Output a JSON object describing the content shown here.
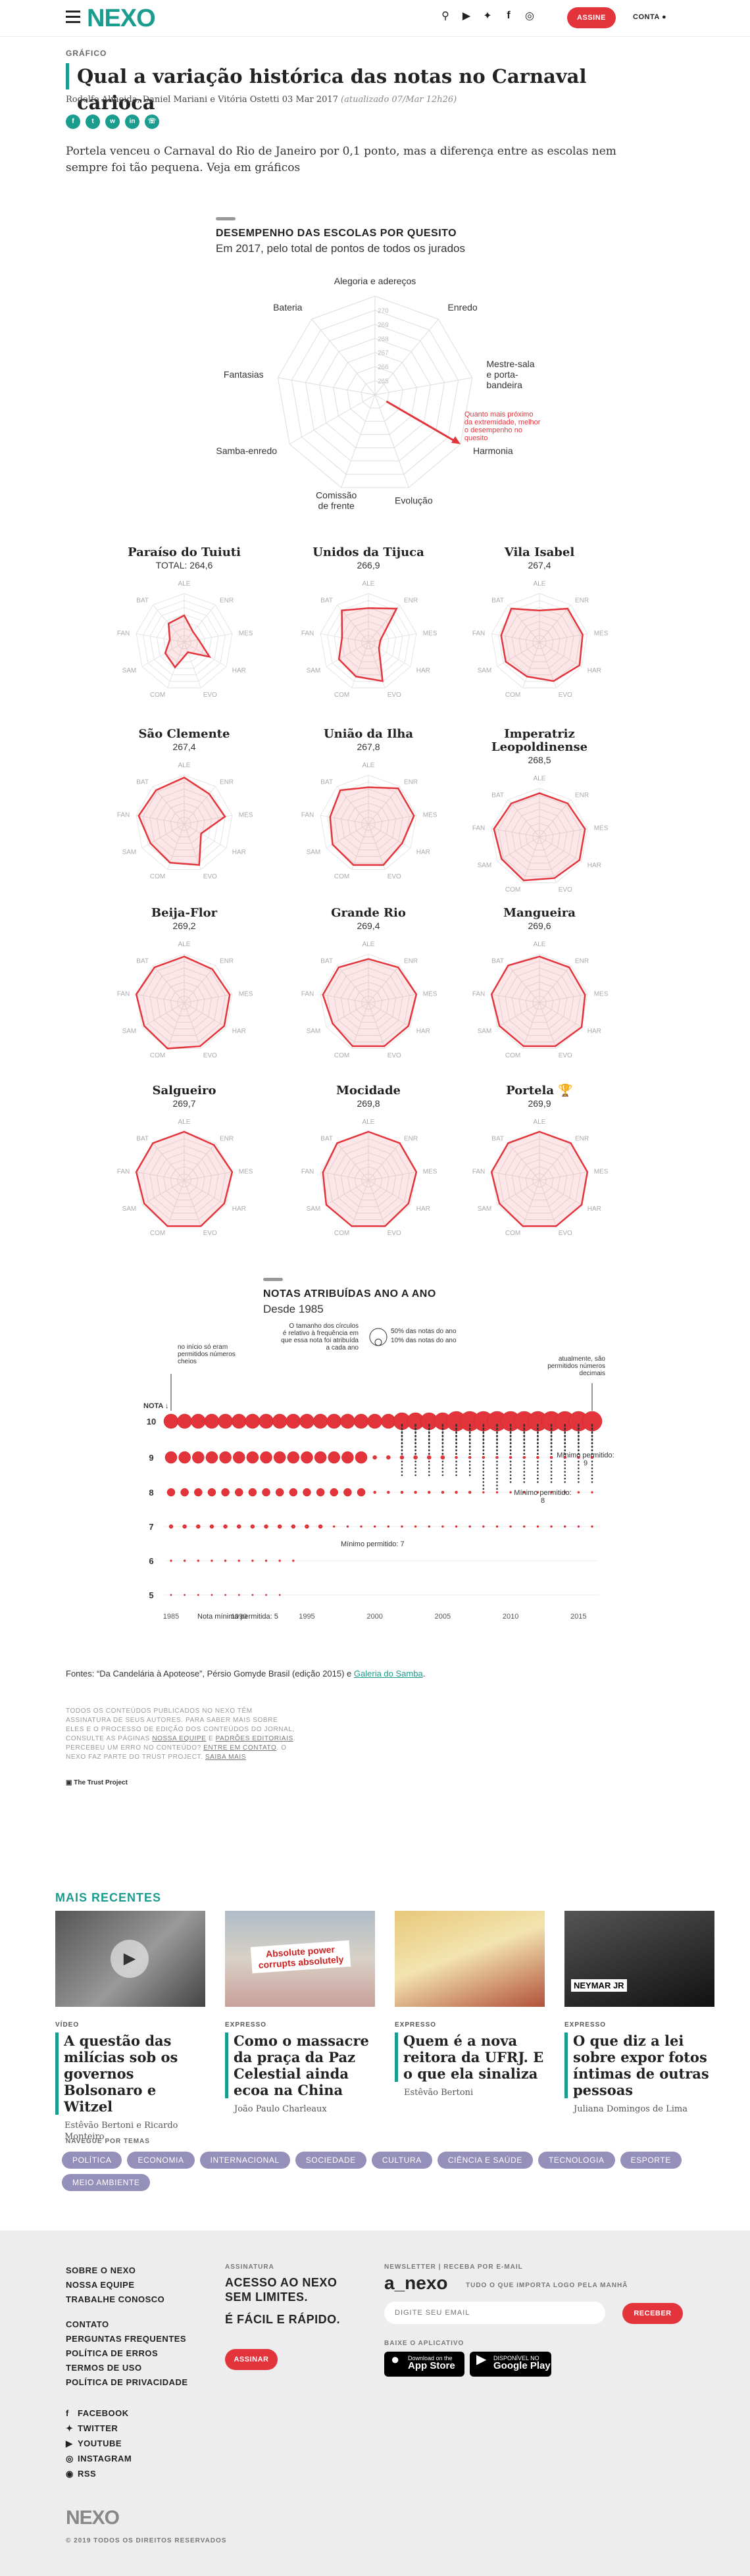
{
  "header": {
    "logo": "NEXO",
    "assine": "ASSINE",
    "conta": "CONTA"
  },
  "article": {
    "kicker": "GRÁFICO",
    "title": "Qual a variação histórica das notas no Carnaval carioca",
    "byline": "Rodolfo Almeida, Daniel Mariani e Vitória Ostetti 03 Mar 2017",
    "updated": "(atualizado 07/Mar 12h26)",
    "lead": "Portela venceu o Carnaval do Rio de Janeiro por 0,1 ponto, mas a diferença entre as escolas nem sempre foi tão pequena. Veja em gráficos"
  },
  "radar": {
    "title": "DESEMPENHO DAS ESCOLAS POR QUESITO",
    "subtitle": "Em 2017, pelo total de pontos de todos os jurados",
    "axes": [
      "Alegoria e adereços",
      "Enredo",
      "Mestre-sala e porta-bandeira",
      "Harmonia",
      "Evolução",
      "Comissão de frente",
      "Samba-enredo",
      "Fantasias",
      "Bateria"
    ],
    "rings": [
      "265",
      "266",
      "267",
      "268",
      "269",
      "270"
    ],
    "note": "Quanto mais próximo da extremidade, melhor o desempenho no quesito",
    "short": [
      "ALE",
      "ENR",
      "MES",
      "HAR",
      "EVO",
      "COM",
      "SAM",
      "FAN",
      "BAT"
    ],
    "total_label": "TOTAL:"
  },
  "schools": [
    {
      "name": "Paraíso do Tuiuti",
      "total": "264,6",
      "v": [
        0.55,
        0.28,
        0.3,
        0.6,
        0.22,
        0.55,
        0.45,
        0.3,
        0.5
      ]
    },
    {
      "name": "Unidos da Tijuca",
      "total": "266,9",
      "v": [
        0.7,
        0.9,
        0.25,
        0.25,
        0.85,
        0.75,
        0.7,
        0.55,
        0.85
      ]
    },
    {
      "name": "Vila Isabel",
      "total": "267,4",
      "v": [
        0.65,
        0.9,
        0.9,
        0.95,
        0.85,
        0.75,
        0.8,
        0.8,
        0.9
      ]
    },
    {
      "name": "São Clemente",
      "total": "267,4",
      "v": [
        0.95,
        0.8,
        0.85,
        0.4,
        0.9,
        0.85,
        0.8,
        0.95,
        0.9
      ]
    },
    {
      "name": "União da Ilha",
      "total": "267,8",
      "v": [
        0.75,
        0.95,
        0.95,
        0.8,
        0.9,
        0.9,
        0.85,
        0.8,
        0.9
      ]
    },
    {
      "name": "Imperatriz Leopoldinense",
      "total": "268,5",
      "v": [
        0.9,
        0.9,
        0.95,
        0.95,
        0.9,
        0.95,
        0.9,
        0.95,
        0.9
      ]
    },
    {
      "name": "Beija-Flor",
      "total": "269,2",
      "v": [
        0.95,
        0.9,
        0.95,
        0.95,
        0.95,
        1,
        0.95,
        1,
        0.95
      ]
    },
    {
      "name": "Grande Rio",
      "total": "269,4",
      "v": [
        0.9,
        0.95,
        1,
        0.95,
        0.95,
        0.95,
        0.85,
        0.95,
        0.95
      ]
    },
    {
      "name": "Mangueira",
      "total": "269,6",
      "v": [
        0.95,
        0.95,
        0.95,
        1,
        0.95,
        0.95,
        0.95,
        1,
        1
      ]
    },
    {
      "name": "Salgueiro",
      "total": "269,7",
      "v": [
        1,
        0.95,
        1,
        0.95,
        1,
        1,
        0.95,
        1,
        1
      ]
    },
    {
      "name": "Mocidade",
      "total": "269,8",
      "v": [
        1,
        1,
        1,
        0.95,
        1,
        1,
        1,
        0.95,
        1
      ]
    },
    {
      "name": "Portela",
      "total": "269,9",
      "v": [
        1,
        1,
        1,
        1,
        1,
        1,
        0.95,
        1,
        1
      ],
      "trophy": "🏆"
    }
  ],
  "bubble": {
    "title": "NOTAS ATRIBUÍDAS ANO A ANO",
    "subtitle": "Desde 1985",
    "nota_label": "NOTA",
    "y_ticks": [
      "10",
      "9",
      "8",
      "7",
      "6",
      "5"
    ],
    "x_ticks": [
      "1985",
      "1990",
      "1995",
      "2000",
      "2005",
      "2010",
      "2015"
    ],
    "note_start": "no início só eram permitidos números cheios",
    "note_size": "O tamanho dos círculos é relativo à frequência em que essa nota foi atribuída a cada ano",
    "legend_big": "50% das notas do ano",
    "legend_small": "10% das notas do ano",
    "note_end": "atualmente, são permitidos números decimais",
    "min_label": "Mínimo permitido:",
    "min9": "9",
    "min8": "8",
    "min7": "Mínimo permitido: 7",
    "min5": "Nota mínima permitida: 5"
  },
  "fontes": {
    "text": "Fontes: “Da Candelária à Apoteose”, Pérsio Gomyde Brasil (edição 2015) e",
    "link": "Galeria do Samba"
  },
  "trust": {
    "text1": "Todos os conteúdos publicados no Nexo têm assinatura de seus autores. Para saber mais sobre eles e o processo de edição dos conteúdos do jornal, consulte as páginas",
    "l1": "Nossa equipe",
    "and": "e",
    "l2": "Padrões editoriais",
    "text2": ". Percebeu um erro no conteúdo?",
    "l3": "Entre em contato",
    "text3": ". O Nexo faz parte do Trust Project.",
    "l4": "Saiba mais",
    "logo": "The Trust Project"
  },
  "recent": {
    "title": "MAIS RECENTES",
    "items": [
      {
        "kind": "VÍDEO",
        "title": "A questão das milícias sob os governos Bolsonaro e Witzel",
        "author": "Estêvão Bertoni e Ricardo Monteiro"
      },
      {
        "kind": "EXPRESSO",
        "title": "Como o massacre da praça da Paz Celestial ainda ecoa na China",
        "author": "João Paulo Charleaux",
        "sign": "Absolute power corrupts absolutely"
      },
      {
        "kind": "EXPRESSO",
        "title": "Quem é a nova reitora da UFRJ. E o que ela sinaliza",
        "author": "Estêvão Bertoni"
      },
      {
        "kind": "EXPRESSO",
        "title": "O que diz a lei sobre expor fotos íntimas de outras pessoas",
        "author": "Juliana Domingos de Lima",
        "sign": "NEYMAR JR"
      }
    ]
  },
  "topics": {
    "label": "NAVEGUE POR TEMAS",
    "items": [
      "POLÍTICA",
      "ECONOMIA",
      "INTERNACIONAL",
      "SOCIEDADE",
      "CULTURA",
      "CIÊNCIA E SAÚDE",
      "TECNOLOGIA",
      "ESPORTE",
      "MEIO AMBIENTE"
    ]
  },
  "footer": {
    "links1": [
      "SOBRE O NEXO",
      "NOSSA EQUIPE",
      "TRABALHE CONOSCO"
    ],
    "links2": [
      "CONTATO",
      "PERGUNTAS FREQUENTES",
      "POLÍTICA DE ERROS",
      "TERMOS DE USO",
      "POLÍTICA DE PRIVACIDADE"
    ],
    "social": [
      "FACEBOOK",
      "TWITTER",
      "YOUTUBE",
      "INSTAGRAM",
      "RSS"
    ],
    "assinatura_label": "ASSINATURA",
    "assinatura_l1": "ACESSO AO NEXO",
    "assinatura_l2": "SEM LIMITES.",
    "assinatura_l3": "É FÁCIL E RÁPIDO.",
    "assinar": "ASSINAR",
    "newsletter_label": "NEWSLETTER | RECEBA POR E-MAIL",
    "anexo": "a_nexo",
    "anexo_tag": "TUDO O QUE IMPORTA LOGO PELA MANHÃ",
    "email_placeholder": "DIGITE SEU EMAIL",
    "receber": "RECEBER",
    "app_label": "BAIXE O APLICATIVO",
    "appstore_small": "Download on the",
    "appstore": "App Store",
    "google_small": "DISPONÍVEL NO",
    "google": "Google Play",
    "logo": "NEXO",
    "copyright": "© 2019 TODOS OS DIREITOS RESERVADOS"
  }
}
